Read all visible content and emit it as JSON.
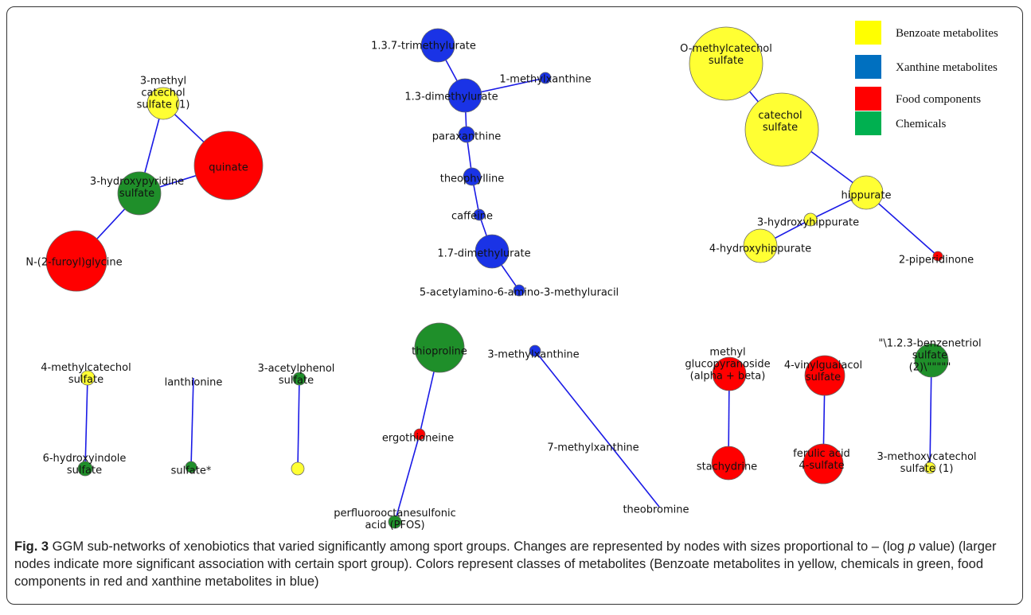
{
  "colors": {
    "benzoate": "#ffff33",
    "xanthine": "#1a33e6",
    "food": "#ff0000",
    "chemical": "#1f8f2a",
    "edge": "#1a1ae6"
  },
  "legend": [
    {
      "label": "Benzoate metabolites",
      "color": "#ffff00"
    },
    {
      "label": "Xanthine metabolites",
      "color": "#0070c0"
    },
    {
      "label": "Food components",
      "color": "#ff0000"
    },
    {
      "label": "Chemicals",
      "color": "#00b050"
    }
  ],
  "caption": {
    "fig_label": "Fig. 3",
    "text_a": " GGM sub-networks of xenobiotics that varied significantly among sport groups. Changes are represented by nodes with sizes proportional to – (log ",
    "p_symbol": "p",
    "text_b": " value) (larger nodes indicate more significant association with certain sport group). Colors represent classes of metabolites (Benzoate metabolites in yellow, chemicals in green, food components in red and xanthine metabolites in blue)"
  },
  "nodes": [
    {
      "id": "trimethylurate",
      "class": "xanthine",
      "label": [
        "1.3.7-trimethylurate"
      ]
    },
    {
      "id": "methylxanthine1",
      "class": "xanthine",
      "label": [
        "1-methylxanthine"
      ]
    },
    {
      "id": "dimethylurate13",
      "class": "xanthine",
      "label": [
        "1.3-dimethylurate"
      ]
    },
    {
      "id": "paraxanthine",
      "class": "xanthine",
      "label": [
        "paraxanthine"
      ]
    },
    {
      "id": "theophylline",
      "class": "xanthine",
      "label": [
        "theophylline"
      ]
    },
    {
      "id": "caffeine",
      "class": "xanthine",
      "label": [
        "caffeine"
      ]
    },
    {
      "id": "dimethylurate17",
      "class": "xanthine",
      "label": [
        "1.7-dimethylurate"
      ]
    },
    {
      "id": "acetylamino",
      "class": "xanthine",
      "label": [
        "5-acetylamino-6-amino-3-methyluracil"
      ]
    },
    {
      "id": "methylcatechol_s1",
      "class": "benzoate",
      "label": [
        "3-methyl",
        "catechol",
        "sulfate (1)"
      ]
    },
    {
      "id": "quinate",
      "class": "food",
      "label": [
        "quinate"
      ]
    },
    {
      "id": "hydroxypyridine",
      "class": "chemical",
      "label": [
        "3-hydroxypyridine",
        "sulfate"
      ]
    },
    {
      "id": "furoylglycine",
      "class": "food",
      "label": [
        "N-(2-furoyl)glycine"
      ]
    },
    {
      "id": "omethylcatechol",
      "class": "benzoate",
      "label": [
        "O-methylcatechol",
        "sulfate"
      ]
    },
    {
      "id": "catecholsulfate",
      "class": "benzoate",
      "label": [
        "catechol",
        "sulfate"
      ]
    },
    {
      "id": "hippurate",
      "class": "benzoate",
      "label": [
        "hippurate"
      ]
    },
    {
      "id": "hydroxyhippurate3",
      "class": "benzoate",
      "label": [
        "3-hydroxyhippurate"
      ]
    },
    {
      "id": "hydroxyhippurate4",
      "class": "benzoate",
      "label": [
        "4-hydroxyhippurate"
      ]
    },
    {
      "id": "piperidinone",
      "class": "food",
      "label": [
        "2-piperidinone"
      ]
    },
    {
      "id": "methylcatechol4",
      "class": "benzoate",
      "label": [
        "4-methylcatechol",
        "sulfate"
      ]
    },
    {
      "id": "hydroxyindole",
      "class": "chemical",
      "label": [
        "6-hydroxyindole",
        "sulfate"
      ]
    },
    {
      "id": "lanthionine",
      "class": "chemical",
      "label": [
        "lanthionine"
      ]
    },
    {
      "id": "sulfate",
      "class": "chemical",
      "label": [
        "sulfate*"
      ]
    },
    {
      "id": "acetylphenol",
      "class": "chemical",
      "label": [
        "3-acetylphenol",
        "sulfate"
      ]
    },
    {
      "id": "acetylphenol_partner",
      "class": "benzoate",
      "label": []
    },
    {
      "id": "thioproline",
      "class": "chemical",
      "label": [
        "thioproline"
      ]
    },
    {
      "id": "ergothioneine",
      "class": "food",
      "label": [
        "ergothioneine"
      ]
    },
    {
      "id": "pfos",
      "class": "chemical",
      "label": [
        "perfluorooctanesulfonic",
        "acid (PFOS)"
      ]
    },
    {
      "id": "methylxanthine3",
      "class": "xanthine",
      "label": [
        "3-methylxanthine"
      ]
    },
    {
      "id": "methylxanthine7",
      "class": "xanthine",
      "label": [
        "7-methylxanthine"
      ]
    },
    {
      "id": "theobromine",
      "class": "xanthine",
      "label": [
        "theobromine"
      ]
    },
    {
      "id": "glucopyranoside",
      "class": "food",
      "label": [
        "methyl",
        "glucopyranoside",
        "(alpha + beta)"
      ]
    },
    {
      "id": "stachydrine",
      "class": "food",
      "label": [
        "stachydrine"
      ]
    },
    {
      "id": "vinylguaiacol",
      "class": "food",
      "label": [
        "4-vinylguaiacol",
        "sulfate"
      ]
    },
    {
      "id": "ferulic",
      "class": "food",
      "label": [
        "ferulic acid",
        "4-sulfate"
      ]
    },
    {
      "id": "benzenetriol",
      "class": "chemical",
      "label": [
        "\"\\1.2.3-benzenetriol",
        "sulfate",
        "(2)\\\"\"\"\"\""
      ]
    },
    {
      "id": "methoxycatechol",
      "class": "benzoate",
      "label": [
        "3-methoxycatechol",
        "sulfate (1)"
      ]
    }
  ],
  "edges": [
    [
      "trimethylurate",
      "dimethylurate13"
    ],
    [
      "dimethylurate13",
      "methylxanthine1"
    ],
    [
      "dimethylurate13",
      "paraxanthine"
    ],
    [
      "paraxanthine",
      "theophylline"
    ],
    [
      "theophylline",
      "caffeine"
    ],
    [
      "caffeine",
      "dimethylurate17"
    ],
    [
      "dimethylurate17",
      "acetylamino"
    ],
    [
      "methylcatechol_s1",
      "quinate"
    ],
    [
      "methylcatechol_s1",
      "hydroxypyridine"
    ],
    [
      "hydroxypyridine",
      "quinate"
    ],
    [
      "hydroxypyridine",
      "furoylglycine"
    ],
    [
      "omethylcatechol",
      "catecholsulfate"
    ],
    [
      "catecholsulfate",
      "hippurate"
    ],
    [
      "hippurate",
      "hydroxyhippurate3"
    ],
    [
      "hydroxyhippurate3",
      "hydroxyhippurate4"
    ],
    [
      "hippurate",
      "piperidinone"
    ],
    [
      "methylcatechol4",
      "hydroxyindole"
    ],
    [
      "lanthionine",
      "sulfate"
    ],
    [
      "acetylphenol",
      "acetylphenol_partner"
    ],
    [
      "thioproline",
      "ergothioneine"
    ],
    [
      "ergothioneine",
      "pfos"
    ],
    [
      "methylxanthine3",
      "theobromine"
    ],
    [
      "glucopyranoside",
      "stachydrine"
    ],
    [
      "vinylguaiacol",
      "ferulic"
    ],
    [
      "benzenetriol",
      "methoxycatechol"
    ]
  ]
}
